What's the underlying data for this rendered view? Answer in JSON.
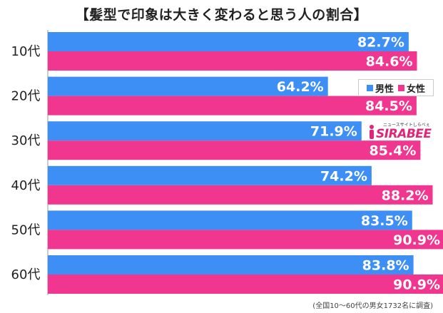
{
  "chart_data": {
    "type": "bar",
    "orientation": "horizontal",
    "title": "【髪型で印象は大きく変わると思う人の割合】",
    "categories": [
      "10代",
      "20代",
      "30代",
      "40代",
      "50代",
      "60代"
    ],
    "series": [
      {
        "name": "男性",
        "color": "#3d8ff5",
        "values": [
          82.7,
          64.2,
          71.9,
          74.2,
          83.5,
          83.8
        ],
        "labels": [
          "82.7%",
          "64.2%",
          "71.9%",
          "74.2%",
          "83.5%",
          "83.8%"
        ]
      },
      {
        "name": "女性",
        "color": "#f0368f",
        "values": [
          84.6,
          84.5,
          85.4,
          88.2,
          90.9,
          90.9
        ],
        "labels": [
          "84.6%",
          "84.5%",
          "85.4%",
          "88.2%",
          "90.9%",
          "90.9%"
        ]
      }
    ],
    "xlim": [
      0,
      100
    ],
    "grid": false,
    "legend_position": "right"
  },
  "legend": {
    "male": "男性",
    "female": "女性"
  },
  "logo": {
    "text": "SIRABEE",
    "subtext": "ニュースサイトしらべぇ"
  },
  "footnote": "(全国10〜60代の男女1732名に調査)"
}
